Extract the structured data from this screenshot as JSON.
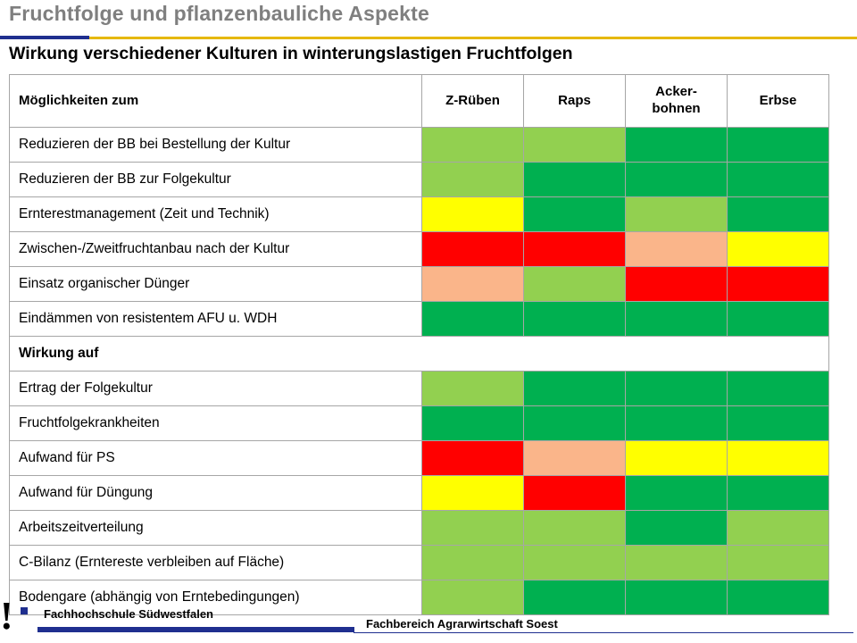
{
  "slide": {
    "title": "Fruchtfolge und pflanzenbauliche Aspekte",
    "subtitle": "Wirkung verschiedener Kulturen in winterungslastigen Fruchtfolgen"
  },
  "colors": {
    "dark_green": "#00b050",
    "light_green": "#92d050",
    "yellow": "#ffff00",
    "red": "#ff0000",
    "salmon": "#fab58a",
    "title_gray": "#7f7f7f",
    "brand_blue": "#1f2f8f",
    "brand_gold": "#e6b800"
  },
  "table": {
    "headers": [
      "Möglichkeiten zum",
      "Z-Rüben",
      "Raps",
      "Acker-\nbohnen",
      "Erbse"
    ],
    "rows": [
      {
        "label": "Reduzieren der BB bei Bestellung der Kultur",
        "cells": [
          "light_green",
          "light_green",
          "dark_green",
          "dark_green"
        ]
      },
      {
        "label": "Reduzieren der BB zur Folgekultur",
        "cells": [
          "light_green",
          "dark_green",
          "dark_green",
          "dark_green"
        ]
      },
      {
        "label": "Ernterestmanagement (Zeit und Technik)",
        "cells": [
          "yellow",
          "dark_green",
          "light_green",
          "dark_green"
        ]
      },
      {
        "label": "Zwischen-/Zweitfruchtanbau nach der Kultur",
        "cells": [
          "red",
          "red",
          "salmon",
          "yellow"
        ]
      },
      {
        "label": "Einsatz organischer Dünger",
        "cells": [
          "salmon",
          "light_green",
          "red",
          "red"
        ]
      },
      {
        "label": "Eindämmen von resistentem AFU u. WDH",
        "cells": [
          "dark_green",
          "dark_green",
          "dark_green",
          "dark_green"
        ]
      },
      {
        "section": "Wirkung auf"
      },
      {
        "label": "Ertrag der Folgekultur",
        "cells": [
          "light_green",
          "dark_green",
          "dark_green",
          "dark_green"
        ]
      },
      {
        "label": "Fruchtfolgekrankheiten",
        "cells": [
          "dark_green",
          "dark_green",
          "dark_green",
          "dark_green"
        ]
      },
      {
        "label": "Aufwand für PS",
        "cells": [
          "red",
          "salmon",
          "yellow",
          "yellow"
        ]
      },
      {
        "label": "Aufwand für Düngung",
        "cells": [
          "yellow",
          "red",
          "dark_green",
          "dark_green"
        ]
      },
      {
        "label": "Arbeitszeitverteilung",
        "cells": [
          "light_green",
          "light_green",
          "dark_green",
          "light_green"
        ]
      },
      {
        "label": "C-Bilanz (Erntereste verbleiben auf Fläche)",
        "cells": [
          "light_green",
          "light_green",
          "light_green",
          "light_green"
        ]
      },
      {
        "label": "Bodengare (abhängig von Erntebedingungen)",
        "cells": [
          "light_green",
          "dark_green",
          "dark_green",
          "dark_green"
        ]
      }
    ]
  },
  "footer": {
    "mark": "!",
    "institution": "Fachhochschule Südwestfalen",
    "department": "Fachbereich Agrarwirtschaft Soest"
  }
}
